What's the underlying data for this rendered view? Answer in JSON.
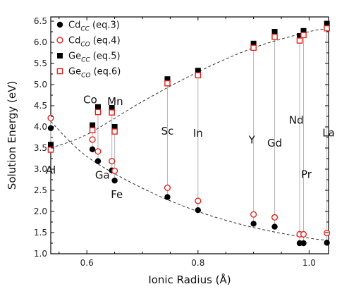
{
  "chart_data": {
    "type": "scatter",
    "xlabel": "Ionic Radius (Å)",
    "ylabel": "Solution Energy (eV)",
    "xlim": [
      0.535,
      1.035
    ],
    "ylim": [
      1.0,
      6.6
    ],
    "xticks": [
      0.6,
      0.8,
      1.0
    ],
    "xtick_labels": [
      "0.6",
      "0.8",
      "1.0"
    ],
    "yticks": [
      1.0,
      1.5,
      2.0,
      2.5,
      3.0,
      3.5,
      4.0,
      4.5,
      5.0,
      5.5,
      6.0,
      6.5
    ],
    "ytick_labels": [
      "1.0",
      "1.5",
      "2.0",
      "2.5",
      "3.0",
      "3.5",
      "4.0",
      "4.5",
      "5.0",
      "5.5",
      "6.0",
      "6.5"
    ],
    "grid": false,
    "legend_position": "top-left",
    "series": [
      {
        "name": "Cd_CC (eq.3)",
        "base": "Cd",
        "sub": "CC",
        "eq": " (eq.3)",
        "marker": "filled-circle",
        "color": "#000000",
        "x": [
          0.535,
          0.61,
          0.62,
          0.645,
          0.65,
          0.745,
          0.8,
          0.9,
          0.938,
          0.983,
          0.99,
          1.032
        ],
        "y": [
          3.97,
          3.47,
          3.19,
          2.97,
          2.73,
          2.34,
          2.03,
          1.71,
          1.64,
          1.25,
          1.25,
          1.26
        ]
      },
      {
        "name": "Cd_CO (eq.4)",
        "base": "Cd",
        "sub": "CO",
        "eq": " (eq.4)",
        "marker": "open-circle",
        "color": "#e8211d",
        "x": [
          0.535,
          0.61,
          0.62,
          0.645,
          0.65,
          0.745,
          0.8,
          0.9,
          0.938,
          0.983,
          0.99,
          1.032
        ],
        "y": [
          4.21,
          3.7,
          3.42,
          3.19,
          2.96,
          2.56,
          2.25,
          1.93,
          1.86,
          1.46,
          1.46,
          1.49
        ]
      },
      {
        "name": "Ge_CC (eq.5)",
        "base": "Ge",
        "sub": "CC",
        "eq": " (eq.5)",
        "marker": "filled-square",
        "color": "#000000",
        "x": [
          0.535,
          0.61,
          0.62,
          0.645,
          0.65,
          0.745,
          0.8,
          0.9,
          0.938,
          0.983,
          0.99,
          1.032
        ],
        "y": [
          3.58,
          4.04,
          4.47,
          4.45,
          4.0,
          5.13,
          5.33,
          5.97,
          6.25,
          6.15,
          6.27,
          6.44
        ]
      },
      {
        "name": "Ge_CO (eq.6)",
        "base": "Ge",
        "sub": "CO",
        "eq": " (eq.6)",
        "marker": "open-square",
        "color": "#e8211d",
        "x": [
          0.535,
          0.61,
          0.62,
          0.645,
          0.65,
          0.745,
          0.8,
          0.9,
          0.938,
          0.983,
          0.99,
          1.032
        ],
        "y": [
          3.46,
          3.92,
          4.35,
          4.34,
          3.89,
          5.03,
          5.22,
          5.87,
          6.13,
          6.04,
          6.17,
          6.33
        ]
      }
    ],
    "fit_curves": [
      {
        "x": [
          0.535,
          0.6,
          0.7,
          0.8,
          0.9,
          1.0,
          1.035
        ],
        "y": [
          4.13,
          3.3,
          2.55,
          2.0,
          1.62,
          1.37,
          1.32
        ]
      },
      {
        "x": [
          0.535,
          0.6,
          0.7,
          0.8,
          0.9,
          1.0,
          1.035
        ],
        "y": [
          3.5,
          3.82,
          4.6,
          5.3,
          5.87,
          6.25,
          6.32
        ]
      }
    ],
    "annotations": [
      {
        "text": "Al",
        "x": 0.535,
        "y": 2.97
      },
      {
        "text": "Co",
        "x": 0.606,
        "y": 4.63
      },
      {
        "text": "Ga",
        "x": 0.628,
        "y": 2.85
      },
      {
        "text": "Mn",
        "x": 0.651,
        "y": 4.59
      },
      {
        "text": "Fe",
        "x": 0.654,
        "y": 2.39
      },
      {
        "text": "Sc",
        "x": 0.745,
        "y": 3.89
      },
      {
        "text": "In",
        "x": 0.8,
        "y": 3.84
      },
      {
        "text": "Y",
        "x": 0.897,
        "y": 3.68
      },
      {
        "text": "Gd",
        "x": 0.938,
        "y": 3.61
      },
      {
        "text": "Nd",
        "x": 0.977,
        "y": 4.15
      },
      {
        "text": "Pr",
        "x": 0.995,
        "y": 2.87
      },
      {
        "text": "La",
        "x": 1.035,
        "y": 3.85
      }
    ]
  }
}
